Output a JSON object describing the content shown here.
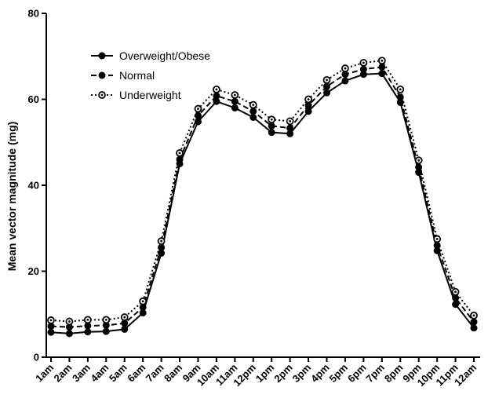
{
  "chart_data": {
    "type": "line",
    "title": "",
    "xlabel": "",
    "ylabel": "Mean vector magnitude (mg)",
    "ylim": [
      0,
      80
    ],
    "yticks": [
      0,
      20,
      40,
      60,
      80
    ],
    "grid": false,
    "legend_position": "top-left",
    "categories": [
      "1am",
      "2am",
      "3am",
      "4am",
      "5am",
      "6am",
      "7am",
      "8am",
      "9am",
      "10am",
      "11am",
      "12pm",
      "1pm",
      "2pm",
      "3pm",
      "4pm",
      "5pm",
      "6pm",
      "7pm",
      "8pm",
      "9pm",
      "10pm",
      "11pm",
      "12am"
    ],
    "series": [
      {
        "name": "Overweight/Obese",
        "line_style": "solid",
        "marker": "filled-circle",
        "color": "#000000",
        "values": [
          5.8,
          5.5,
          5.9,
          6.0,
          6.5,
          10.3,
          24.2,
          45.0,
          54.8,
          59.5,
          58.0,
          55.8,
          52.3,
          52.0,
          57.2,
          61.5,
          64.3,
          65.8,
          66.0,
          59.3,
          43.0,
          24.8,
          12.3,
          6.8
        ]
      },
      {
        "name": "Normal",
        "line_style": "dashed",
        "marker": "filled-circle",
        "color": "#000000",
        "values": [
          7.2,
          7.0,
          7.3,
          7.4,
          7.9,
          11.6,
          25.5,
          46.0,
          56.2,
          60.8,
          59.5,
          57.2,
          53.8,
          53.3,
          58.6,
          63.0,
          65.8,
          67.0,
          67.5,
          60.5,
          44.2,
          26.0,
          13.8,
          8.2
        ]
      },
      {
        "name": "Underweight",
        "line_style": "dotted",
        "marker": "open-circle",
        "color": "#000000",
        "values": [
          8.6,
          8.3,
          8.7,
          8.7,
          9.3,
          13.0,
          27.0,
          47.5,
          57.8,
          62.3,
          61.0,
          58.7,
          55.3,
          54.9,
          60.0,
          64.5,
          67.2,
          68.5,
          69.0,
          62.3,
          45.8,
          27.5,
          15.2,
          9.7
        ]
      }
    ]
  }
}
